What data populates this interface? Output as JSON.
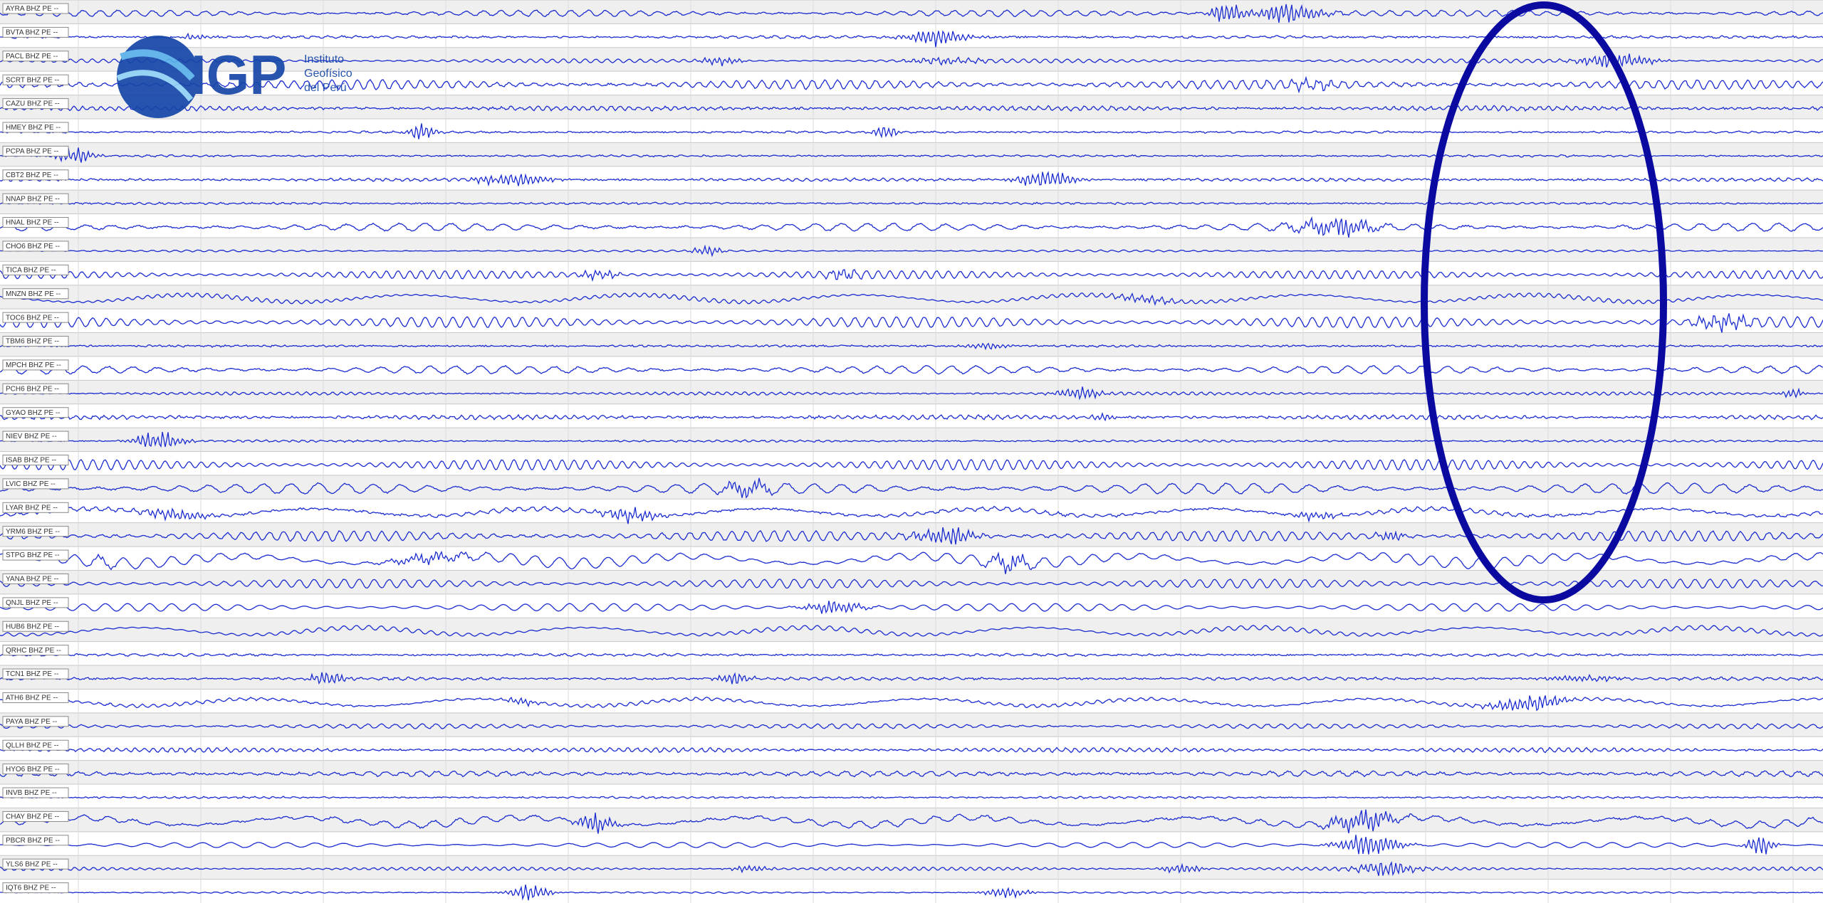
{
  "logo": {
    "mark": "IGP",
    "lines": [
      "Instituto",
      "Geofísico",
      "del Perú"
    ]
  },
  "stations": [
    "AYRA BHZ PE --",
    "BVTA BHZ PE --",
    "PACL BHZ PE --",
    "SCRT BHZ PE --",
    "CAZU BHZ PE --",
    "HMEY BHZ PE --",
    "PCPA BHZ PE --",
    "CBT2 BHZ PE --",
    "NNAP BHZ PE --",
    "HNAL BHZ PE --",
    "CHO6 BHZ PE --",
    "TICA BHZ PE --",
    "MNZN BHZ PE --",
    "TOC6 BHZ PE --",
    "TBM6 BHZ PE --",
    "MPCH BHZ PE --",
    "PCH6 BHZ PE --",
    "GYAO BHZ PE --",
    "NIEV BHZ PE --",
    "ISAB BHZ PE --",
    "LVIC BHZ PE --",
    "LYAR BHZ PE --",
    "YRM6 BHZ PE --",
    "STPG BHZ PE --",
    "YANA BHZ PE --",
    "QNJL BHZ PE --",
    "HUB6 BHZ PE --",
    "QRHC BHZ PE --",
    "TCN1 BHZ PE --",
    "ATH6 BHZ PE --",
    "PAYA BHZ PE --",
    "QLLH BHZ PE --",
    "HYO6 BHZ PE --",
    "INVB BHZ PE --",
    "CHAY BHZ PE --",
    "PBCR BHZ PE --",
    "YLS6 BHZ PE --",
    "IQT6 BHZ PE --"
  ]
}
